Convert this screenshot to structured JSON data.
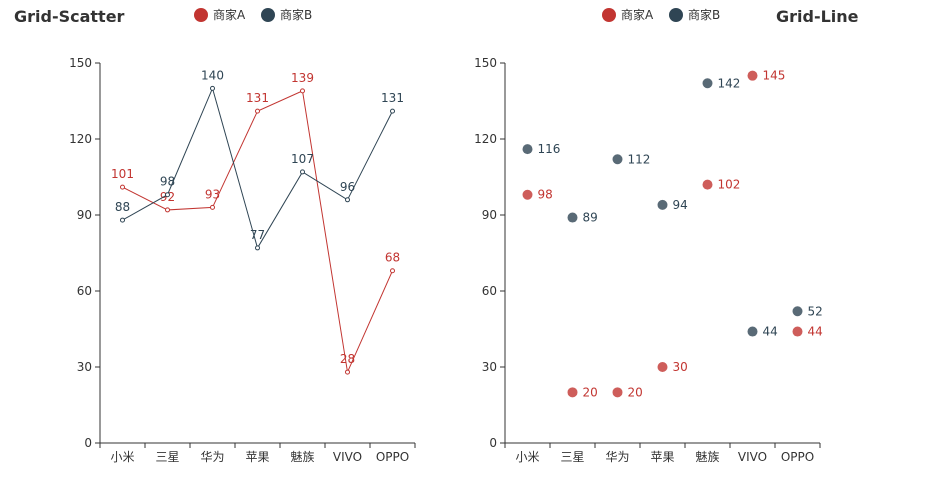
{
  "colors": {
    "series_a": "#c23531",
    "series_b": "#2f4554",
    "axis": "#333333"
  },
  "legend": [
    {
      "name": "商家A",
      "color": "#c23531"
    },
    {
      "name": "商家B",
      "color": "#2f4554"
    }
  ],
  "chart_data": [
    {
      "type": "line",
      "title": "Grid-Scatter",
      "categories": [
        "小米",
        "三星",
        "华为",
        "苹果",
        "魅族",
        "VIVO",
        "OPPO"
      ],
      "ylim": [
        0,
        150
      ],
      "yticks": [
        0,
        30,
        60,
        90,
        120,
        150
      ],
      "grid": false,
      "legend_position": "top-left",
      "series": [
        {
          "name": "商家A",
          "color": "#c23531",
          "values": [
            101,
            92,
            93,
            131,
            139,
            28,
            68
          ]
        },
        {
          "name": "商家B",
          "color": "#2f4554",
          "values": [
            88,
            98,
            140,
            77,
            107,
            96,
            131
          ]
        }
      ]
    },
    {
      "type": "scatter",
      "title": "Grid-Line",
      "categories": [
        "小米",
        "三星",
        "华为",
        "苹果",
        "魅族",
        "VIVO",
        "OPPO"
      ],
      "ylim": [
        0,
        150
      ],
      "yticks": [
        0,
        30,
        60,
        90,
        120,
        150
      ],
      "grid": false,
      "legend_position": "top-right",
      "series": [
        {
          "name": "商家A",
          "color": "#c23531",
          "values": [
            98,
            20,
            20,
            30,
            102,
            145,
            44
          ]
        },
        {
          "name": "商家B",
          "color": "#2f4554",
          "values": [
            116,
            89,
            112,
            94,
            142,
            44,
            52
          ]
        }
      ]
    }
  ]
}
